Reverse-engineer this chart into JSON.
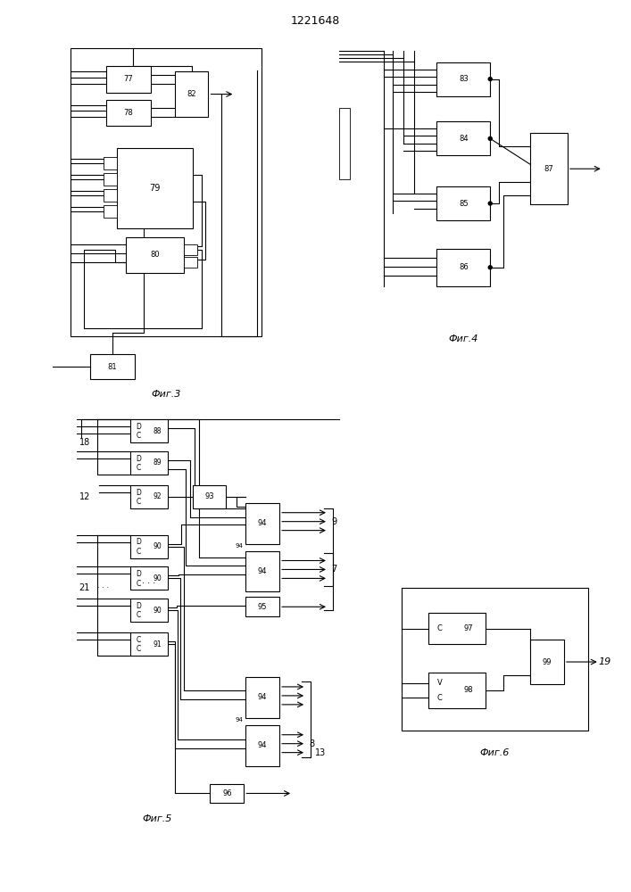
{
  "title": "1221648",
  "bg": "#ffffff",
  "lw": 0.8,
  "fig3_label": "Фиг.3",
  "fig4_label": "Фиг.4",
  "fig5_label": "Фиг.5",
  "fig6_label": "Фиг.6"
}
